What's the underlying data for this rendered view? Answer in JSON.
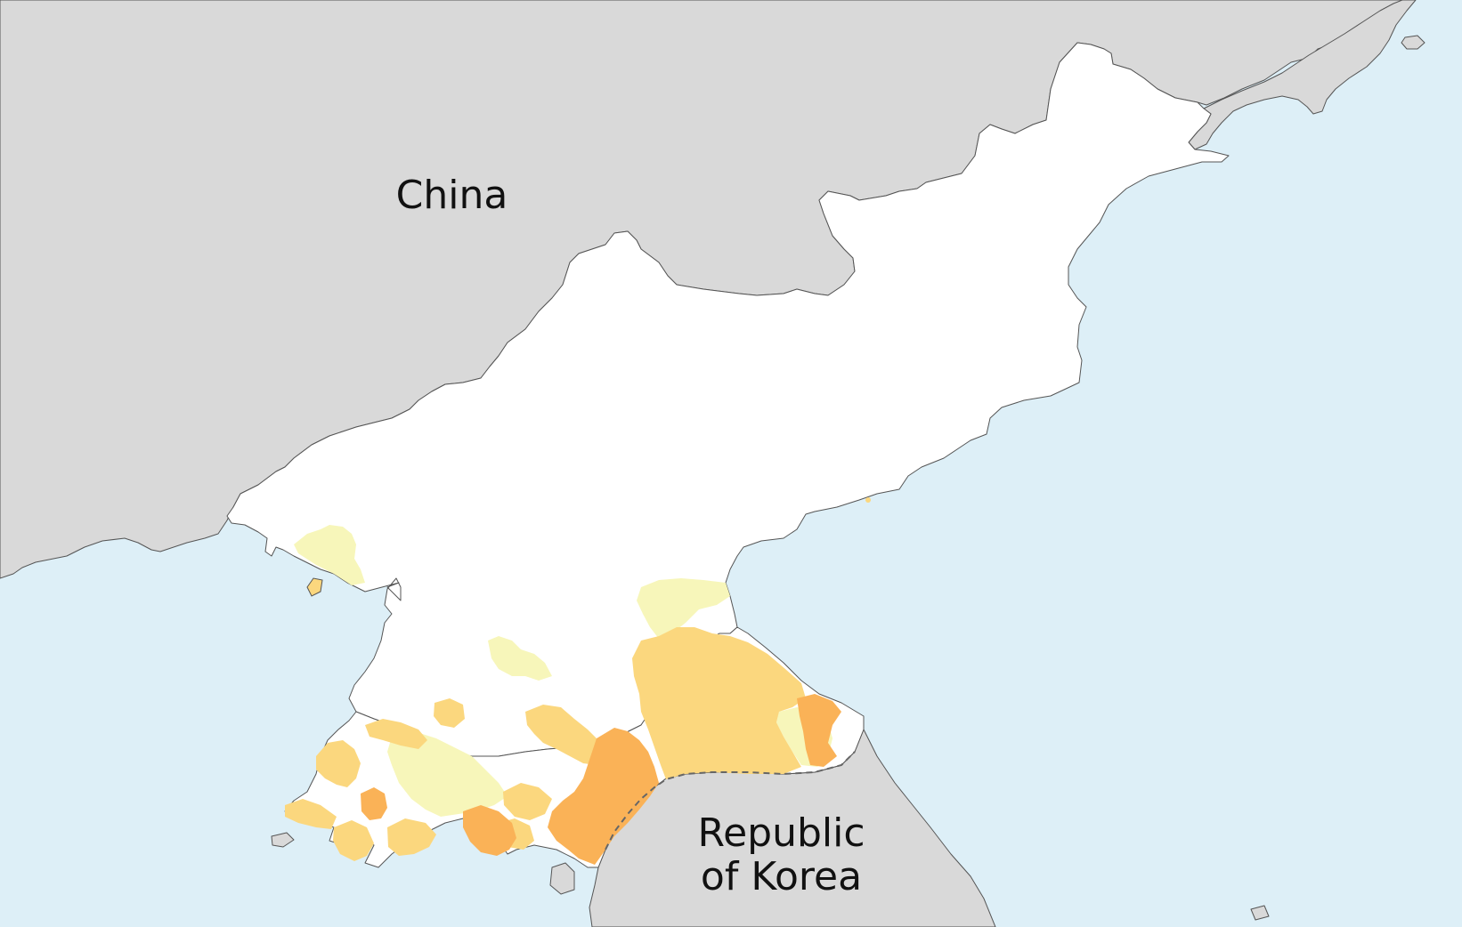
{
  "map": {
    "labels": {
      "china": "China",
      "republic_of_korea": "Republic\nof Korea"
    },
    "colors": {
      "sea": "#ddeff7",
      "neighbor_land": "#d9d9d9",
      "country": "#ffffff",
      "border_line": "#555555",
      "dmz_line": "#666666",
      "shade_light": "#f7f6ba",
      "shade_medium": "#fbd77e",
      "shade_dark": "#fab257"
    },
    "legend": null
  }
}
